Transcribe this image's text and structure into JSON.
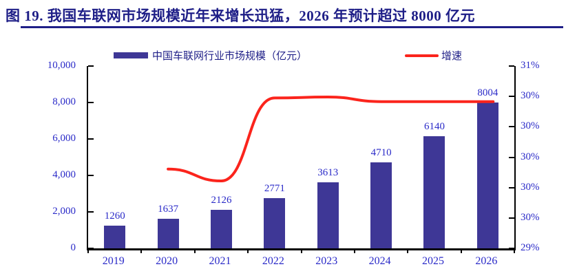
{
  "header": {
    "title": "图 19. 我国车联网市场规模近年来增长迅猛，2026 年预计超过 8000 亿元"
  },
  "legend": {
    "bars_label": "中国车联网行业市场规模（亿元）",
    "line_label": "增速"
  },
  "colors": {
    "title_text": "#1E1E87",
    "axis_text": "#2A2AC8",
    "bar_fill": "#3E3796",
    "line_red": "#FB241C",
    "axis_line": "#000000"
  },
  "chart_data": {
    "type": "bar",
    "subtype": "bar-line-combo",
    "title": "图 19. 我国车联网市场规模近年来增长迅猛，2026 年预计超过 8000 亿元",
    "categories": [
      "2019",
      "2020",
      "2021",
      "2022",
      "2023",
      "2024",
      "2025",
      "2026"
    ],
    "series": [
      {
        "name": "中国车联网行业市场规模（亿元）",
        "type": "bar",
        "axis": "left",
        "values": [
          1260,
          1637,
          2126,
          2771,
          3613,
          4710,
          6140,
          8004
        ]
      },
      {
        "name": "增速",
        "type": "line",
        "axis": "right",
        "categories": [
          "2020",
          "2021",
          "2022",
          "2023",
          "2024",
          "2025",
          "2026"
        ],
        "values_pct": [
          29.87,
          29.74,
          30.65,
          30.66,
          30.61,
          30.61,
          30.61
        ]
      }
    ],
    "bar_value_labels": [
      "1260",
      "1637",
      "2126",
      "2771",
      "3613",
      "4710",
      "6140",
      "8004"
    ],
    "left_axis": {
      "min": 0,
      "max": 10000,
      "tick_labels_bottom_to_top": [
        "0",
        "2,000",
        "4,000",
        "6,000",
        "8,000",
        "10,000"
      ]
    },
    "right_axis": {
      "min": 29,
      "max": 31,
      "tick_labels_top_to_bottom": [
        "31%",
        "30%",
        "30%",
        "30%",
        "30%",
        "30%",
        "29%"
      ]
    },
    "grid": "off",
    "legend_position": "top"
  }
}
